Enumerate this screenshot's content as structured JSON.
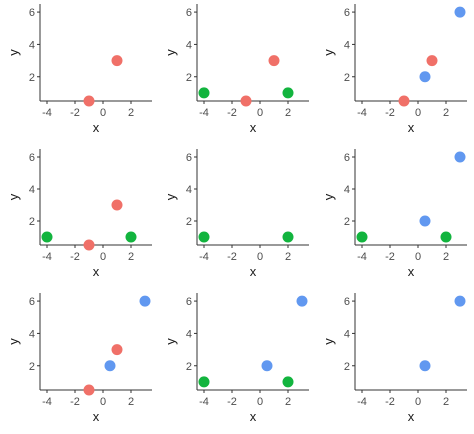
{
  "colors": {
    "red": "#f07068",
    "green": "#12b43e",
    "blue": "#6198f0",
    "axis": "#333333"
  },
  "chart_data": [
    {
      "type": "scatter",
      "xlabel": "x",
      "ylabel": "y",
      "xlim": [
        -4.5,
        3.5
      ],
      "ylim": [
        0.5,
        6.5
      ],
      "xticks": [
        "-4",
        "-2",
        "0",
        "2"
      ],
      "yticks": [
        "2",
        "4",
        "6"
      ],
      "points": [
        {
          "x": -1,
          "y": 0.5,
          "color": "red"
        },
        {
          "x": 1,
          "y": 3,
          "color": "red"
        }
      ]
    },
    {
      "type": "scatter",
      "xlabel": "x",
      "ylabel": "y",
      "xlim": [
        -4.5,
        3.5
      ],
      "ylim": [
        0.5,
        6.5
      ],
      "xticks": [
        "-4",
        "-2",
        "0",
        "2"
      ],
      "yticks": [
        "2",
        "4",
        "6"
      ],
      "points": [
        {
          "x": -1,
          "y": 0.5,
          "color": "red"
        },
        {
          "x": 1,
          "y": 3,
          "color": "red"
        },
        {
          "x": -4,
          "y": 1,
          "color": "green"
        },
        {
          "x": 2,
          "y": 1,
          "color": "green"
        }
      ]
    },
    {
      "type": "scatter",
      "xlabel": "x",
      "ylabel": "y",
      "xlim": [
        -4.5,
        3.5
      ],
      "ylim": [
        0.5,
        6.5
      ],
      "xticks": [
        "-4",
        "-2",
        "0",
        "2"
      ],
      "yticks": [
        "2",
        "4",
        "6"
      ],
      "points": [
        {
          "x": -1,
          "y": 0.5,
          "color": "red"
        },
        {
          "x": 1,
          "y": 3,
          "color": "red"
        },
        {
          "x": 0.5,
          "y": 2,
          "color": "blue"
        },
        {
          "x": 3,
          "y": 6,
          "color": "blue"
        }
      ]
    },
    {
      "type": "scatter",
      "xlabel": "x",
      "ylabel": "y",
      "xlim": [
        -4.5,
        3.5
      ],
      "ylim": [
        0.5,
        6.5
      ],
      "xticks": [
        "-4",
        "-2",
        "0",
        "2"
      ],
      "yticks": [
        "2",
        "4",
        "6"
      ],
      "points": [
        {
          "x": -1,
          "y": 0.5,
          "color": "red"
        },
        {
          "x": 1,
          "y": 3,
          "color": "red"
        },
        {
          "x": -4,
          "y": 1,
          "color": "green"
        },
        {
          "x": 2,
          "y": 1,
          "color": "green"
        }
      ]
    },
    {
      "type": "scatter",
      "xlabel": "x",
      "ylabel": "y",
      "xlim": [
        -4.5,
        3.5
      ],
      "ylim": [
        0.5,
        6.5
      ],
      "xticks": [
        "-4",
        "-2",
        "0",
        "2"
      ],
      "yticks": [
        "2",
        "4",
        "6"
      ],
      "points": [
        {
          "x": -4,
          "y": 1,
          "color": "green"
        },
        {
          "x": 2,
          "y": 1,
          "color": "green"
        }
      ]
    },
    {
      "type": "scatter",
      "xlabel": "x",
      "ylabel": "y",
      "xlim": [
        -4.5,
        3.5
      ],
      "ylim": [
        0.5,
        6.5
      ],
      "xticks": [
        "-4",
        "-2",
        "0",
        "2"
      ],
      "yticks": [
        "2",
        "4",
        "6"
      ],
      "points": [
        {
          "x": -4,
          "y": 1,
          "color": "green"
        },
        {
          "x": 2,
          "y": 1,
          "color": "green"
        },
        {
          "x": 0.5,
          "y": 2,
          "color": "blue"
        },
        {
          "x": 3,
          "y": 6,
          "color": "blue"
        }
      ]
    },
    {
      "type": "scatter",
      "xlabel": "x",
      "ylabel": "y",
      "xlim": [
        -4.5,
        3.5
      ],
      "ylim": [
        0.5,
        6.5
      ],
      "xticks": [
        "-4",
        "-2",
        "0",
        "2"
      ],
      "yticks": [
        "2",
        "4",
        "6"
      ],
      "points": [
        {
          "x": -1,
          "y": 0.5,
          "color": "red"
        },
        {
          "x": 1,
          "y": 3,
          "color": "red"
        },
        {
          "x": 0.5,
          "y": 2,
          "color": "blue"
        },
        {
          "x": 3,
          "y": 6,
          "color": "blue"
        }
      ]
    },
    {
      "type": "scatter",
      "xlabel": "x",
      "ylabel": "y",
      "xlim": [
        -4.5,
        3.5
      ],
      "ylim": [
        0.5,
        6.5
      ],
      "xticks": [
        "-4",
        "-2",
        "0",
        "2"
      ],
      "yticks": [
        "2",
        "4",
        "6"
      ],
      "points": [
        {
          "x": -4,
          "y": 1,
          "color": "green"
        },
        {
          "x": 2,
          "y": 1,
          "color": "green"
        },
        {
          "x": 0.5,
          "y": 2,
          "color": "blue"
        },
        {
          "x": 3,
          "y": 6,
          "color": "blue"
        }
      ]
    },
    {
      "type": "scatter",
      "xlabel": "x",
      "ylabel": "y",
      "xlim": [
        -4.5,
        3.5
      ],
      "ylim": [
        0.5,
        6.5
      ],
      "xticks": [
        "-4",
        "-2",
        "0",
        "2"
      ],
      "yticks": [
        "2",
        "4",
        "6"
      ],
      "points": [
        {
          "x": 0.5,
          "y": 2,
          "color": "blue"
        },
        {
          "x": 3,
          "y": 6,
          "color": "blue"
        }
      ]
    }
  ]
}
